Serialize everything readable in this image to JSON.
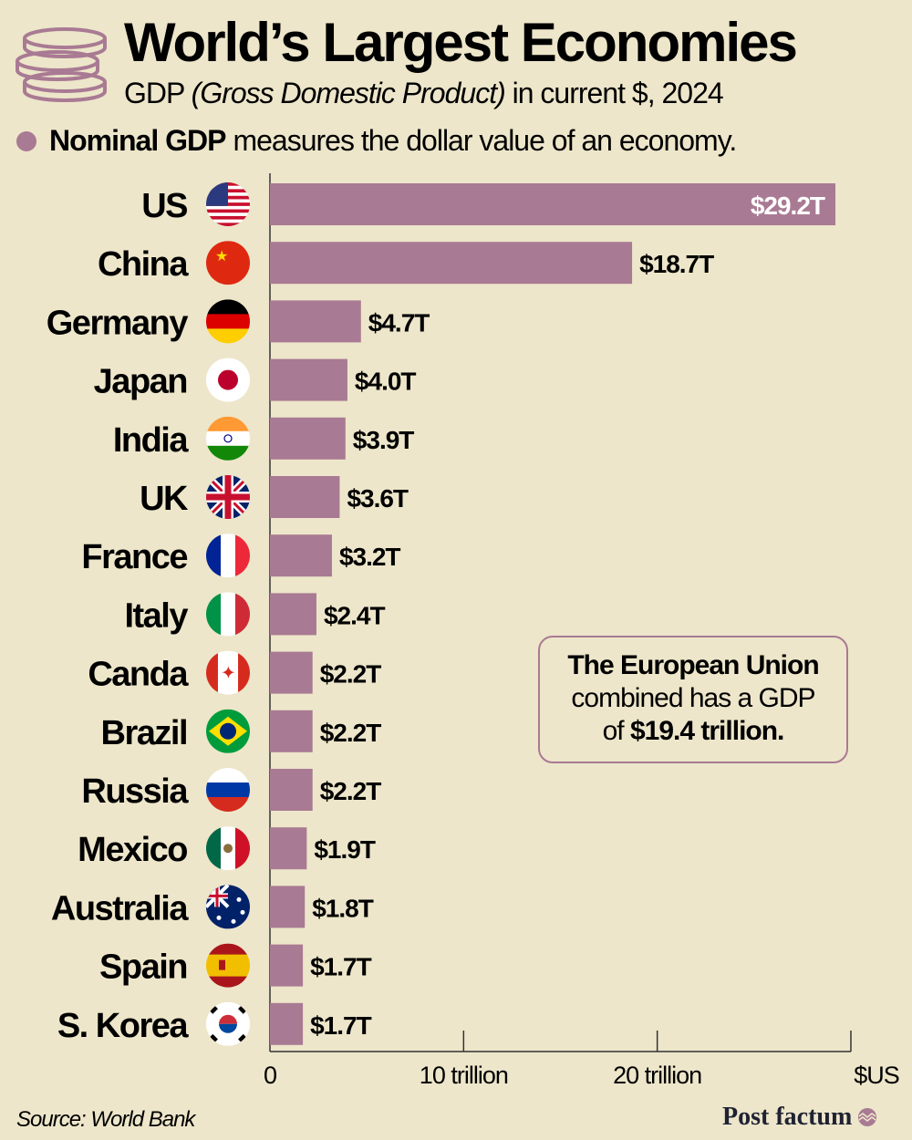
{
  "header": {
    "title": "World’s Largest Economies",
    "subtitle_prefix": "GDP",
    "subtitle_italic": "(Gross Domestic Product)",
    "subtitle_suffix": "in current $, 2024",
    "note_bold": "Nominal GDP",
    "note_text": "measures the dollar value of an economy.",
    "icon": "coins-stack-icon"
  },
  "colors": {
    "bar": "#a97a93",
    "background": "#ede6ca",
    "text": "#000000"
  },
  "chart_data": {
    "type": "bar",
    "orientation": "horizontal",
    "categories": [
      "US",
      "China",
      "Germany",
      "Japan",
      "India",
      "UK",
      "France",
      "Italy",
      "Canda",
      "Brazil",
      "Russia",
      "Mexico",
      "Australia",
      "Spain",
      "S. Korea"
    ],
    "values": [
      29.2,
      18.7,
      4.7,
      4.0,
      3.9,
      3.6,
      3.2,
      2.4,
      2.2,
      2.2,
      2.2,
      1.9,
      1.8,
      1.7,
      1.7
    ],
    "data_labels": [
      "$29.2T",
      "$18.7T",
      "$4.7T",
      "$4.0T",
      "$3.9T",
      "$3.6T",
      "$3.2T",
      "$2.4T",
      "$2.2T",
      "$2.2T",
      "$2.2T",
      "$1.9T",
      "$1.8T",
      "$1.7T",
      "$1.7T"
    ],
    "flags": [
      "us",
      "china",
      "germany",
      "japan",
      "india",
      "uk",
      "france",
      "italy",
      "canada",
      "brazil",
      "russia",
      "mexico",
      "australia",
      "spain",
      "south-korea"
    ],
    "xlim": [
      0,
      30
    ],
    "x_ticks": [
      0,
      10,
      20,
      30
    ],
    "x_tick_labels": [
      "0",
      "10 trillion",
      "20 trillion",
      "$US"
    ],
    "grid": false
  },
  "callout": {
    "line1": "The European Union",
    "line2": "combined has a GDP",
    "line3_prefix": "of",
    "line3_bold": "$19.4 trillion."
  },
  "footer": {
    "source": "Source: World Bank",
    "brand": "Post factum"
  }
}
